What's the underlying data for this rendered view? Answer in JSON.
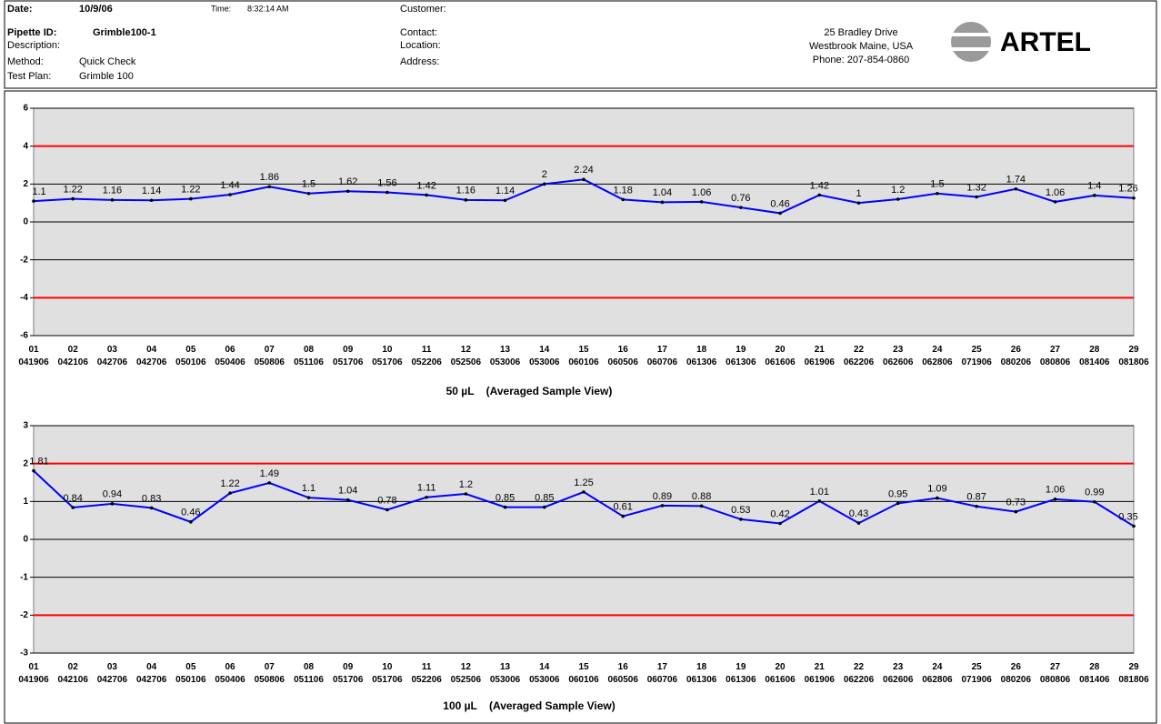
{
  "header": {
    "left": [
      {
        "label": "Date:",
        "value": "10/9/06"
      },
      {
        "label": "Pipette ID:",
        "value": "Grimble100-1"
      },
      {
        "label": "Description:",
        "value": ""
      },
      {
        "label": "Method:",
        "value": "Quick Check"
      },
      {
        "label": "Test Plan:",
        "value": "Grimble 100"
      }
    ],
    "time": {
      "label": "Time:",
      "value": "8:32:14 AM"
    },
    "customer": [
      "Customer:",
      "Contact:",
      "Location:",
      "Address:"
    ],
    "address": [
      "25 Bradley Drive",
      "Westbrook Maine, USA",
      "Phone: 207-854-0860"
    ],
    "logo": "ARTEL"
  },
  "chart_data": [
    {
      "type": "line",
      "title": "50 µL    (Averaged Sample View)",
      "categories": [
        "01 041906",
        "02 042106",
        "03 042706",
        "04 042706",
        "05 050106",
        "06 050406",
        "07 050806",
        "08 051106",
        "09 051706",
        "10 051706",
        "11 052206",
        "12 052506",
        "13 053006",
        "14 053006",
        "15 060106",
        "16 060506",
        "17 060706",
        "18 061306",
        "19 061306",
        "20 061606",
        "21 061906",
        "22 062206",
        "23 062606",
        "24 062806",
        "25 071906",
        "26 080206",
        "27 080806",
        "28 081406",
        "29 081806"
      ],
      "series": [
        {
          "color": "#0000ff",
          "values": [
            1.1,
            1.22,
            1.16,
            1.14,
            1.22,
            1.44,
            1.86,
            1.5,
            1.62,
            1.56,
            1.42,
            1.16,
            1.14,
            2,
            2.24,
            1.18,
            1.04,
            1.06,
            0.76,
            0.46,
            1.42,
            1,
            1.2,
            1.5,
            1.32,
            1.74,
            1.06,
            1.4,
            1.26
          ]
        }
      ],
      "limits": [
        4,
        -4
      ],
      "limit_color": "#ff0000",
      "ylim": [
        -6,
        6
      ],
      "yticks": [
        -6,
        -4,
        -2,
        0,
        2,
        4,
        6
      ],
      "grid": true
    },
    {
      "type": "line",
      "title": "100 µL    (Averaged Sample View)",
      "categories": [
        "01 041906",
        "02 042106",
        "03 042706",
        "04 042706",
        "05 050106",
        "06 050406",
        "07 050806",
        "08 051106",
        "09 051706",
        "10 051706",
        "11 052206",
        "12 052506",
        "13 053006",
        "14 053006",
        "15 060106",
        "16 060506",
        "17 060706",
        "18 061306",
        "19 061306",
        "20 061606",
        "21 061906",
        "22 062206",
        "23 062606",
        "24 062806",
        "25 071906",
        "26 080206",
        "27 080806",
        "28 081406",
        "29 081806"
      ],
      "series": [
        {
          "color": "#0000ff",
          "values": [
            1.81,
            0.84,
            0.94,
            0.83,
            0.46,
            1.22,
            1.49,
            1.1,
            1.04,
            0.78,
            1.11,
            1.2,
            0.85,
            0.85,
            1.25,
            0.61,
            0.89,
            0.88,
            0.53,
            0.42,
            1.01,
            0.43,
            0.95,
            1.09,
            0.87,
            0.73,
            1.06,
            0.99,
            0.35
          ]
        }
      ],
      "limits": [
        2,
        -2
      ],
      "limit_color": "#ff0000",
      "ylim": [
        -3,
        3
      ],
      "yticks": [
        -3,
        -2,
        -1,
        0,
        1,
        2,
        3
      ],
      "grid": true
    }
  ]
}
